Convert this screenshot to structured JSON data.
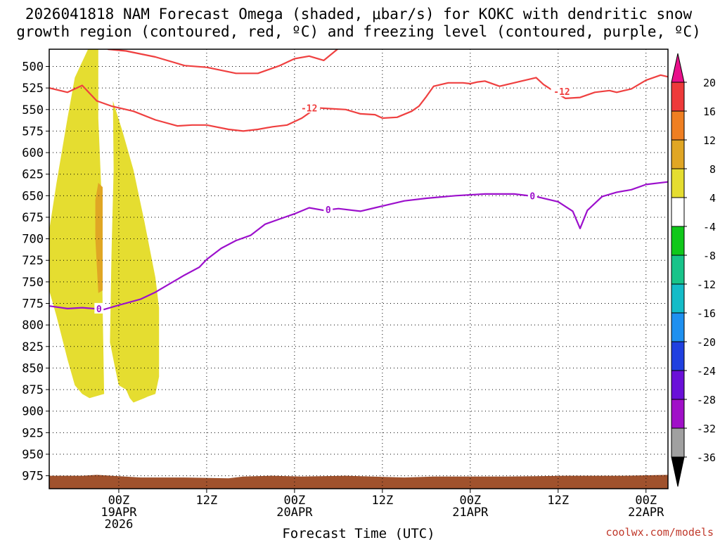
{
  "chart_data": {
    "type": "time-height contour",
    "title_lines": [
      "2026041818 NAM Forecast Omega (shaded, μbar/s) for KOKC with dendritic snow",
      "growth region (contoured, red, ºC) and freezing level (contoured, purple, ºC)"
    ],
    "xlabel": "Forecast Time (UTC)",
    "x_units": "hours from 19APR 00Z",
    "xlim": [
      -9.5,
      75
    ],
    "x_ticks": [
      {
        "t": 0,
        "lines": [
          "00Z",
          "19APR",
          "2026"
        ]
      },
      {
        "t": 12,
        "lines": [
          "12Z"
        ]
      },
      {
        "t": 24,
        "lines": [
          "00Z",
          "20APR"
        ]
      },
      {
        "t": 36,
        "lines": [
          "12Z"
        ]
      },
      {
        "t": 48,
        "lines": [
          "00Z",
          "21APR"
        ]
      },
      {
        "t": 60,
        "lines": [
          "12Z"
        ]
      },
      {
        "t": 72,
        "lines": [
          "00Z",
          "22APR"
        ]
      }
    ],
    "y_units": "hPa",
    "ylim": [
      480,
      990
    ],
    "y_ticks": [
      500,
      525,
      550,
      575,
      600,
      625,
      650,
      675,
      700,
      725,
      750,
      775,
      800,
      825,
      850,
      875,
      900,
      925,
      950,
      975
    ],
    "grid": "dotted",
    "colorbar": {
      "label_values": [
        "20",
        "16",
        "12",
        "8",
        "4",
        "-4",
        "-8",
        "-12",
        "-16",
        "-20",
        "-24",
        "-28",
        "-32",
        "-36"
      ],
      "bins": [
        {
          "range": ">20",
          "color": "#e8108a"
        },
        {
          "range": "16 to 20",
          "color": "#ee3a3a"
        },
        {
          "range": "12 to 16",
          "color": "#ef7f22"
        },
        {
          "range": "8 to 12",
          "color": "#e0a624"
        },
        {
          "range": "4 to 8",
          "color": "#e5dd30"
        },
        {
          "range": "-4 to 4",
          "color": "#ffffff"
        },
        {
          "range": "-8 to -4",
          "color": "#10c81a"
        },
        {
          "range": "-12 to -8",
          "color": "#18c48a"
        },
        {
          "range": "-16 to -12",
          "color": "#14bcc8"
        },
        {
          "range": "-20 to -16",
          "color": "#1e90f0"
        },
        {
          "range": "-24 to -20",
          "color": "#2040e0"
        },
        {
          "range": "-28 to -24",
          "color": "#6a10d8"
        },
        {
          "range": "-32 to -28",
          "color": "#a010c8"
        },
        {
          "range": "-36 to -32",
          "color": "#a0a0a0"
        },
        {
          "range": "<-36",
          "color": "#000000"
        }
      ]
    },
    "series": [
      {
        "name": "-12 C isotherm (upper branch)",
        "color": "#ef4040",
        "points": [
          [
            -1.5,
            480
          ],
          [
            1,
            482
          ],
          [
            5,
            489
          ],
          [
            9,
            499
          ],
          [
            12,
            501
          ],
          [
            16,
            508
          ],
          [
            19,
            508
          ],
          [
            22,
            499
          ],
          [
            24,
            491
          ],
          [
            26,
            488
          ],
          [
            28,
            493
          ],
          [
            30,
            479
          ]
        ]
      },
      {
        "name": "-12 C isotherm (lower branch)",
        "color": "#ef4040",
        "points": [
          [
            -9.5,
            525
          ],
          [
            -7,
            530
          ],
          [
            -5,
            522
          ],
          [
            -3,
            540
          ],
          [
            -1,
            546
          ],
          [
            2,
            552
          ],
          [
            5,
            562
          ],
          [
            8,
            569
          ],
          [
            10,
            568
          ],
          [
            12,
            568
          ],
          [
            15,
            573
          ],
          [
            17,
            575
          ],
          [
            19,
            573
          ],
          [
            21,
            570
          ],
          [
            23,
            568
          ],
          [
            25,
            560
          ],
          [
            27,
            548
          ],
          [
            29,
            549
          ],
          [
            31,
            550
          ],
          [
            33,
            555
          ],
          [
            35,
            556
          ],
          [
            36,
            560
          ],
          [
            38,
            559
          ],
          [
            40,
            552
          ],
          [
            41,
            546
          ],
          [
            42,
            535
          ],
          [
            43,
            523
          ],
          [
            45,
            519
          ],
          [
            47,
            519
          ],
          [
            48,
            520
          ],
          [
            49,
            518
          ],
          [
            50,
            517
          ],
          [
            52,
            523
          ],
          [
            55,
            517
          ],
          [
            57,
            513
          ],
          [
            58,
            521
          ],
          [
            60,
            532
          ],
          [
            61,
            537
          ],
          [
            63,
            536
          ],
          [
            65,
            530
          ],
          [
            67,
            528
          ],
          [
            68,
            530
          ],
          [
            70,
            526
          ],
          [
            72,
            516
          ],
          [
            74,
            510
          ],
          [
            75,
            512
          ]
        ]
      },
      {
        "name": "0 C freezing level",
        "color": "#9c10cc",
        "points": [
          [
            -9.5,
            778
          ],
          [
            -7,
            781
          ],
          [
            -5,
            780
          ],
          [
            -2,
            782
          ],
          [
            0,
            777
          ],
          [
            3,
            770
          ],
          [
            5,
            762
          ],
          [
            7,
            752
          ],
          [
            9,
            742
          ],
          [
            11,
            733
          ],
          [
            12,
            724
          ],
          [
            14,
            711
          ],
          [
            16,
            702
          ],
          [
            18,
            696
          ],
          [
            20,
            683
          ],
          [
            22,
            677
          ],
          [
            24,
            671
          ],
          [
            26,
            664
          ],
          [
            28,
            667
          ],
          [
            30,
            665
          ],
          [
            33,
            668
          ],
          [
            35,
            664
          ],
          [
            37,
            660
          ],
          [
            39,
            656
          ],
          [
            42,
            653
          ],
          [
            46,
            650
          ],
          [
            50,
            648
          ],
          [
            54,
            648
          ],
          [
            57,
            651
          ],
          [
            60,
            657
          ],
          [
            62,
            668
          ],
          [
            63,
            688
          ],
          [
            64,
            667
          ],
          [
            66,
            651
          ],
          [
            68,
            646
          ],
          [
            70,
            643
          ],
          [
            72,
            637
          ],
          [
            75,
            634
          ]
        ]
      }
    ],
    "contour_labels": [
      {
        "text": "-12",
        "t": 26,
        "p": 548,
        "color": "#ef4040"
      },
      {
        "text": "-12",
        "t": 60.5,
        "p": 529,
        "color": "#ef4040"
      },
      {
        "text": "0",
        "t": 28.6,
        "p": 666,
        "color": "#9c10cc"
      },
      {
        "text": "0",
        "t": 56.5,
        "p": 650,
        "color": "#9c10cc"
      },
      {
        "text": "0",
        "t": -2.7,
        "p": 781,
        "color": "#9c10cc"
      }
    ],
    "shaded_regions": [
      {
        "name": "omega 4 to 8 (first band)",
        "color": "#e5dd30",
        "points": [
          [
            -9.5,
            690
          ],
          [
            -8.5,
            635
          ],
          [
            -7,
            560
          ],
          [
            -6,
            513
          ],
          [
            -4.2,
            480
          ],
          [
            -2.8,
            480
          ],
          [
            -2.8,
            560
          ],
          [
            -2.4,
            640
          ],
          [
            -2.2,
            780
          ],
          [
            -2,
            880
          ],
          [
            -4,
            885
          ],
          [
            -5,
            880
          ],
          [
            -6,
            870
          ],
          [
            -7,
            840
          ],
          [
            -8.5,
            790
          ],
          [
            -9.5,
            760
          ]
        ]
      },
      {
        "name": "omega 4 to 8 (second band)",
        "color": "#e5dd30",
        "points": [
          [
            -0.8,
            540
          ],
          [
            0.5,
            575
          ],
          [
            2,
            620
          ],
          [
            3.5,
            680
          ],
          [
            5,
            745
          ],
          [
            5.5,
            780
          ],
          [
            5.5,
            860
          ],
          [
            5,
            880
          ],
          [
            4,
            883
          ],
          [
            3.5,
            885
          ],
          [
            2,
            890
          ],
          [
            1.5,
            885
          ],
          [
            1,
            875
          ],
          [
            0,
            870
          ],
          [
            -0.5,
            850
          ],
          [
            -1.2,
            820
          ],
          [
            -1,
            720
          ],
          [
            -0.7,
            620
          ]
        ]
      },
      {
        "name": "omega 8 to 12",
        "color": "#e0a624",
        "points": [
          [
            -2.8,
            635
          ],
          [
            -2.2,
            640
          ],
          [
            -2.2,
            760
          ],
          [
            -2.8,
            763
          ],
          [
            -3.2,
            700
          ],
          [
            -3.2,
            655
          ]
        ]
      },
      {
        "name": "terrain",
        "color": "#a0522d",
        "points": [
          [
            -9.5,
            975
          ],
          [
            -5,
            975
          ],
          [
            -3,
            974
          ],
          [
            -1,
            975
          ],
          [
            3,
            977
          ],
          [
            9,
            977
          ],
          [
            15,
            978
          ],
          [
            17,
            976
          ],
          [
            21,
            975
          ],
          [
            25,
            976
          ],
          [
            31,
            975
          ],
          [
            39,
            977
          ],
          [
            43,
            976
          ],
          [
            53,
            976
          ],
          [
            61,
            975
          ],
          [
            69,
            975
          ],
          [
            75,
            974
          ],
          [
            75,
            990
          ],
          [
            -9.5,
            990
          ]
        ]
      }
    ]
  },
  "credit": "coolwx.com/models"
}
